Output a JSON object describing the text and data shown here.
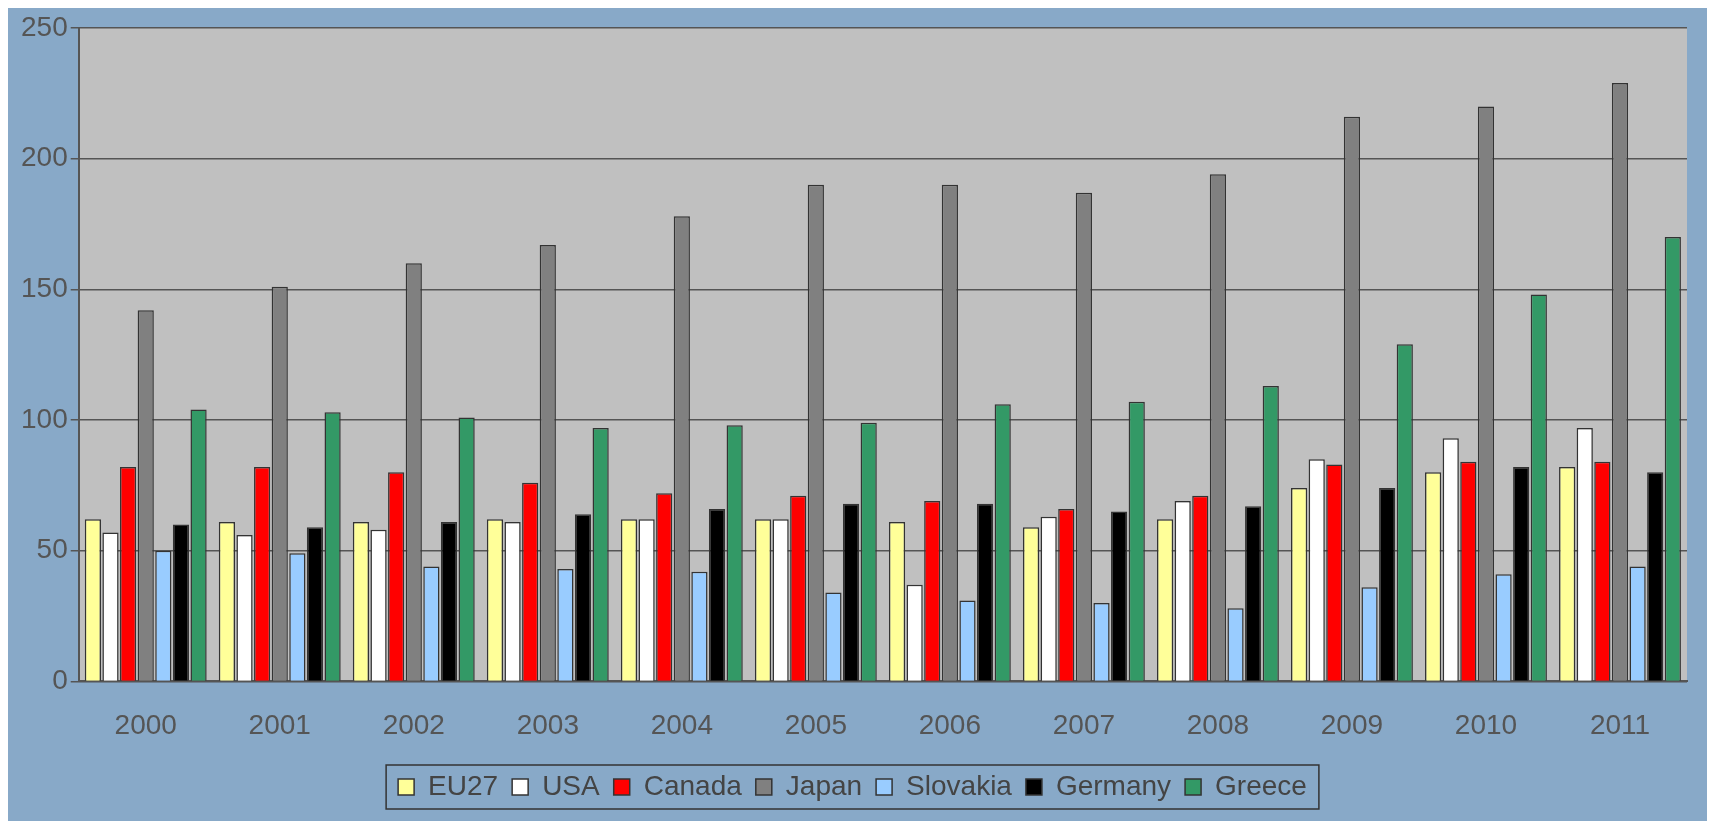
{
  "chart_data": {
    "type": "bar",
    "categories": [
      "2000",
      "2001",
      "2002",
      "2003",
      "2004",
      "2005",
      "2006",
      "2007",
      "2008",
      "2009",
      "2010",
      "2011"
    ],
    "series": [
      {
        "name": "EU27",
        "color": "#ffff99",
        "values": [
          62,
          61,
          61,
          62,
          62,
          62,
          61,
          59,
          62,
          74,
          80,
          82
        ]
      },
      {
        "name": "USA",
        "color": "#ffffff",
        "values": [
          57,
          56,
          58,
          61,
          62,
          62,
          37,
          63,
          69,
          85,
          93,
          97
        ]
      },
      {
        "name": "Canada",
        "color": "#ff0000",
        "values": [
          82,
          82,
          80,
          76,
          72,
          71,
          69,
          66,
          71,
          83,
          84,
          84
        ]
      },
      {
        "name": "Japan",
        "color": "#808080",
        "values": [
          142,
          151,
          160,
          167,
          178,
          190,
          190,
          187,
          194,
          216,
          220,
          229
        ]
      },
      {
        "name": "Slovakia",
        "color": "#99ccff",
        "values": [
          50,
          49,
          44,
          43,
          42,
          34,
          31,
          30,
          28,
          36,
          41,
          44
        ]
      },
      {
        "name": "Germany",
        "color": "#000000",
        "values": [
          60,
          59,
          61,
          64,
          66,
          68,
          68,
          65,
          67,
          74,
          82,
          80
        ]
      },
      {
        "name": "Greece",
        "color": "#339966",
        "values": [
          104,
          103,
          101,
          97,
          98,
          99,
          106,
          107,
          113,
          129,
          148,
          170
        ]
      }
    ],
    "ylim": [
      0,
      250
    ],
    "yticks": [
      0,
      50,
      100,
      150,
      200,
      250
    ],
    "grid": "y",
    "legend": "bottom"
  }
}
